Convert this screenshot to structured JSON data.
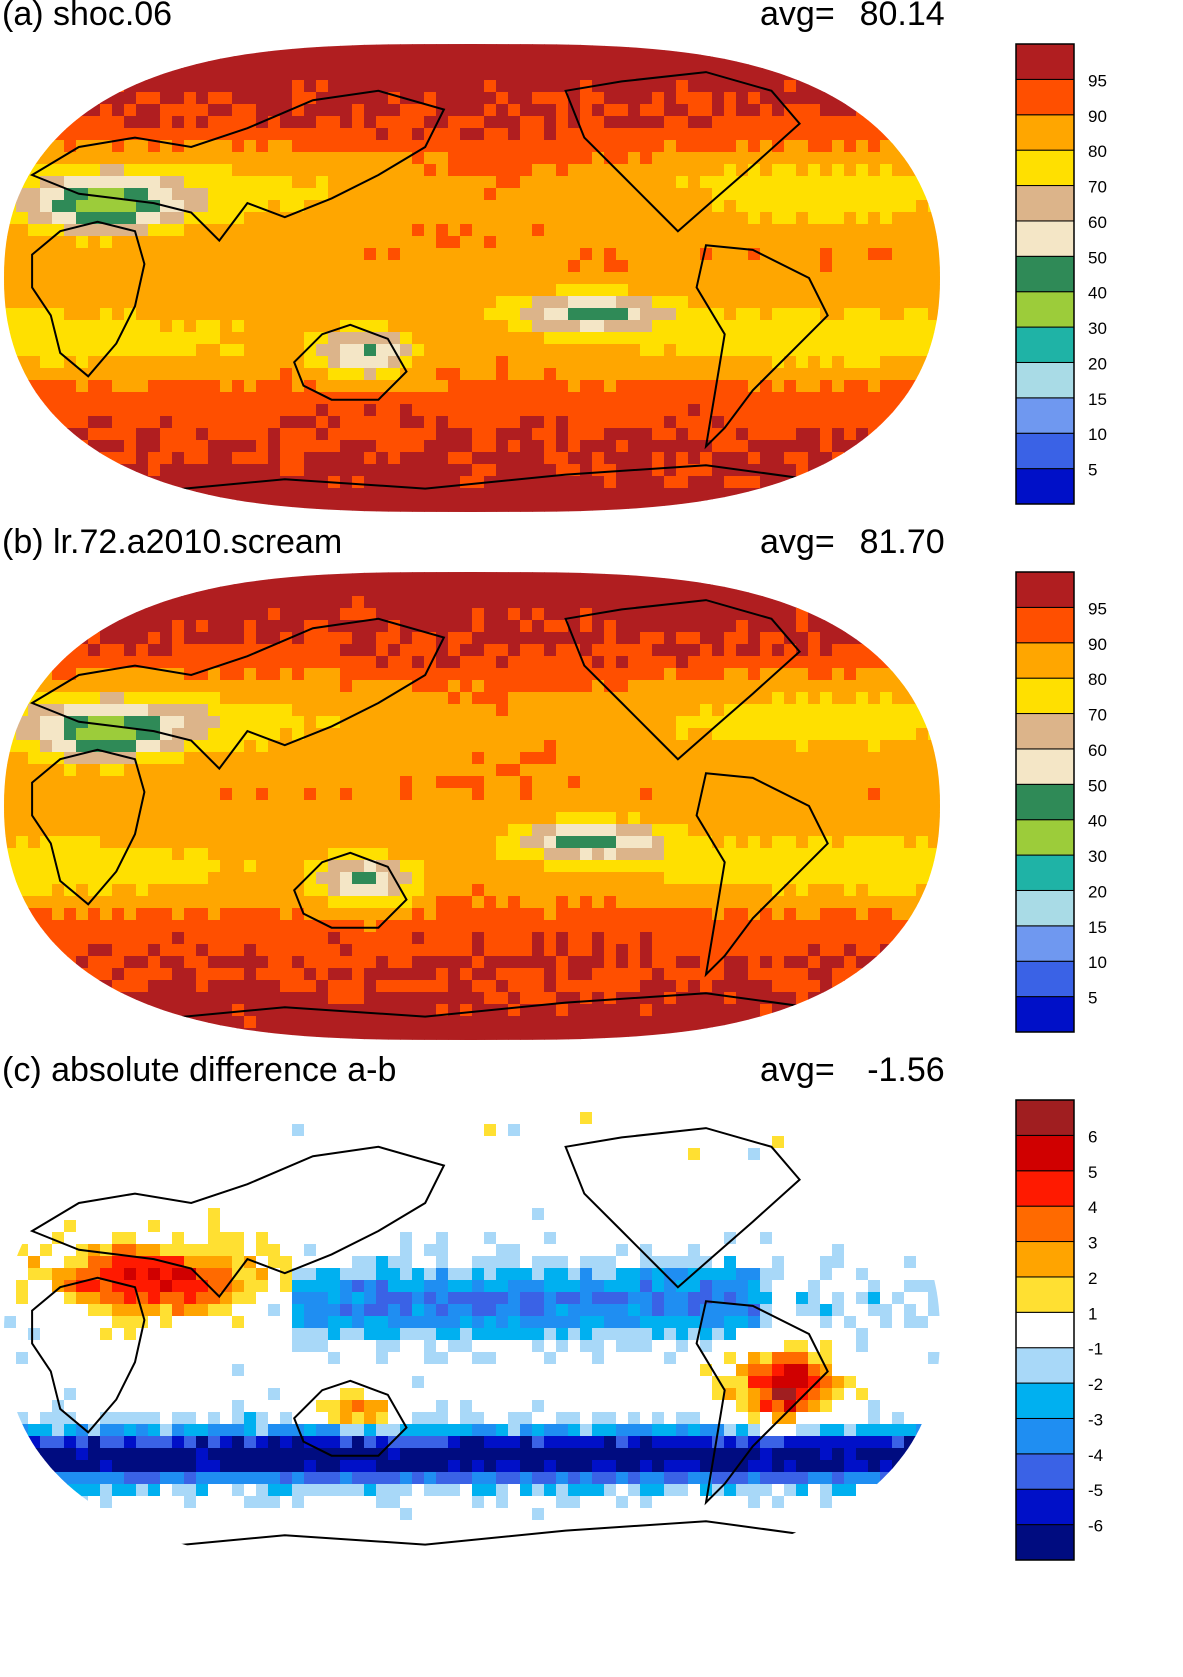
{
  "colors": {
    "abs": [
      "#0010c8",
      "#3a62e6",
      "#6f98f0",
      "#a9dbe6",
      "#1fb3a6",
      "#9ccc3a",
      "#2f8a57",
      "#f4e6c6",
      "#dcb48a",
      "#ffe000",
      "#ffa600",
      "#ff4f00",
      "#b01e20"
    ],
    "diff": [
      "#000c80",
      "#0010c8",
      "#3a62e6",
      "#1f8ef2",
      "#00b0f0",
      "#a8d8f8",
      "#ffffff",
      "#ffe032",
      "#ffa400",
      "#ff6a00",
      "#ff1a00",
      "#d00000",
      "#a01e20"
    ]
  },
  "chart_data": [
    {
      "type": "heatmap",
      "title": "(a) shoc.06",
      "avg_label": "avg=",
      "avg_value": "80.14",
      "colorbar_levels": [
        "5",
        "10",
        "15",
        "20",
        "30",
        "40",
        "50",
        "60",
        "70",
        "80",
        "90",
        "95"
      ],
      "colormap": "abs"
    },
    {
      "type": "heatmap",
      "title": "(b) lr.72.a2010.scream",
      "avg_label": "avg=",
      "avg_value": "81.70",
      "colorbar_levels": [
        "5",
        "10",
        "15",
        "20",
        "30",
        "40",
        "50",
        "60",
        "70",
        "80",
        "90",
        "95"
      ],
      "colormap": "abs"
    },
    {
      "type": "heatmap",
      "title": "(c) absolute difference a-b",
      "avg_label": "avg=",
      "avg_value": "-1.56",
      "colorbar_levels": [
        "-6",
        "-5",
        "-4",
        "-3",
        "-2",
        "-1",
        "1",
        "2",
        "3",
        "4",
        "5",
        "6"
      ],
      "colormap": "diff"
    }
  ]
}
